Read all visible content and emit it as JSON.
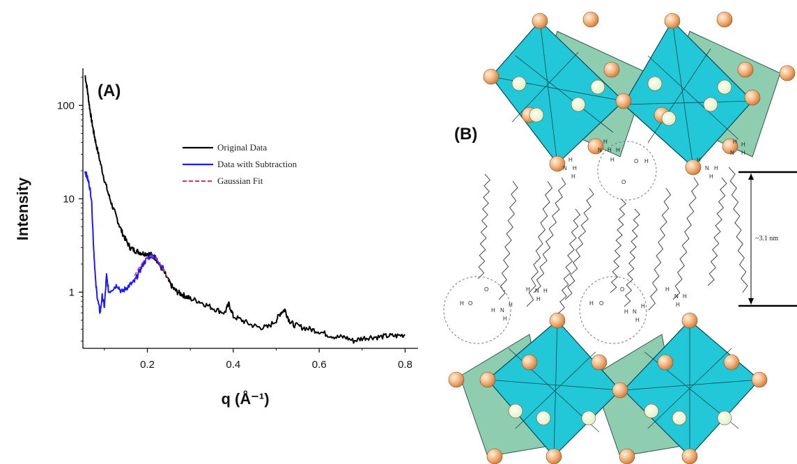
{
  "chart_data": {
    "type": "line",
    "panel_label": "(A)",
    "xlabel": "q (Å⁻¹)",
    "ylabel": "Intensity",
    "xlim": [
      0.05,
      0.83
    ],
    "ylim": [
      0.25,
      250
    ],
    "yscale": "log",
    "x_ticks": [
      0.2,
      0.4,
      0.6,
      0.8
    ],
    "x_tick_labels": [
      "0.2",
      "0.4",
      "0.6",
      "0.8"
    ],
    "y_ticks": [
      1,
      10,
      100
    ],
    "y_tick_labels": [
      "1",
      "10",
      "100"
    ],
    "grid": false,
    "legend_position": "upper-right",
    "series": [
      {
        "name": "Original Data",
        "color": "#000000",
        "style": "solid",
        "x": [
          0.055,
          0.06,
          0.065,
          0.07,
          0.075,
          0.08,
          0.09,
          0.1,
          0.11,
          0.12,
          0.13,
          0.14,
          0.15,
          0.16,
          0.17,
          0.18,
          0.19,
          0.2,
          0.21,
          0.22,
          0.23,
          0.24,
          0.25,
          0.26,
          0.27,
          0.28,
          0.29,
          0.3,
          0.32,
          0.34,
          0.36,
          0.38,
          0.39,
          0.4,
          0.42,
          0.44,
          0.46,
          0.48,
          0.5,
          0.51,
          0.52,
          0.53,
          0.54,
          0.56,
          0.58,
          0.6,
          0.62,
          0.64,
          0.66,
          0.68,
          0.7,
          0.72,
          0.74,
          0.76,
          0.78,
          0.8
        ],
        "y": [
          210,
          150,
          100,
          70,
          52,
          40,
          25,
          16,
          11,
          8,
          6,
          4.5,
          3.6,
          3.0,
          2.8,
          2.7,
          2.6,
          2.6,
          2.5,
          2.3,
          1.9,
          1.6,
          1.3,
          1.1,
          1.0,
          0.95,
          0.9,
          0.85,
          0.8,
          0.72,
          0.65,
          0.6,
          0.75,
          0.55,
          0.5,
          0.45,
          0.42,
          0.42,
          0.5,
          0.6,
          0.65,
          0.5,
          0.45,
          0.42,
          0.4,
          0.38,
          0.35,
          0.33,
          0.33,
          0.3,
          0.32,
          0.33,
          0.33,
          0.34,
          0.34,
          0.35
        ]
      },
      {
        "name": "Data with Subtraction",
        "color": "#1a1aff",
        "style": "solid",
        "x": [
          0.055,
          0.06,
          0.065,
          0.07,
          0.075,
          0.08,
          0.085,
          0.09,
          0.095,
          0.1,
          0.105,
          0.11,
          0.12,
          0.13,
          0.14,
          0.15,
          0.16,
          0.17,
          0.18,
          0.19,
          0.2,
          0.21,
          0.22,
          0.23,
          0.24
        ],
        "y": [
          20,
          17,
          14,
          10,
          3.0,
          1.2,
          0.8,
          0.6,
          0.9,
          0.7,
          1.5,
          1.0,
          1.1,
          1.2,
          1.0,
          1.1,
          1.2,
          1.3,
          1.6,
          2.0,
          2.3,
          2.5,
          2.3,
          2.0,
          1.7
        ]
      },
      {
        "name": "Gaussian Fit",
        "color": "#e6336b",
        "style": "dashed",
        "x": [
          0.17,
          0.18,
          0.19,
          0.2,
          0.21,
          0.22,
          0.23,
          0.24,
          0.25
        ],
        "y": [
          1.5,
          1.8,
          2.1,
          2.35,
          2.45,
          2.3,
          2.0,
          1.65,
          1.35
        ]
      }
    ]
  },
  "diagram": {
    "panel_label": "(B)",
    "spacing_label": "~3.1 nm",
    "atom_label_h": "H",
    "atom_label_n": "N",
    "atom_label_o": "O",
    "colors": {
      "octahedron_front": "#22c8d8",
      "octahedron_back": "#8fcdb0",
      "atom": "#f3b27a",
      "chain": "#444444"
    }
  }
}
